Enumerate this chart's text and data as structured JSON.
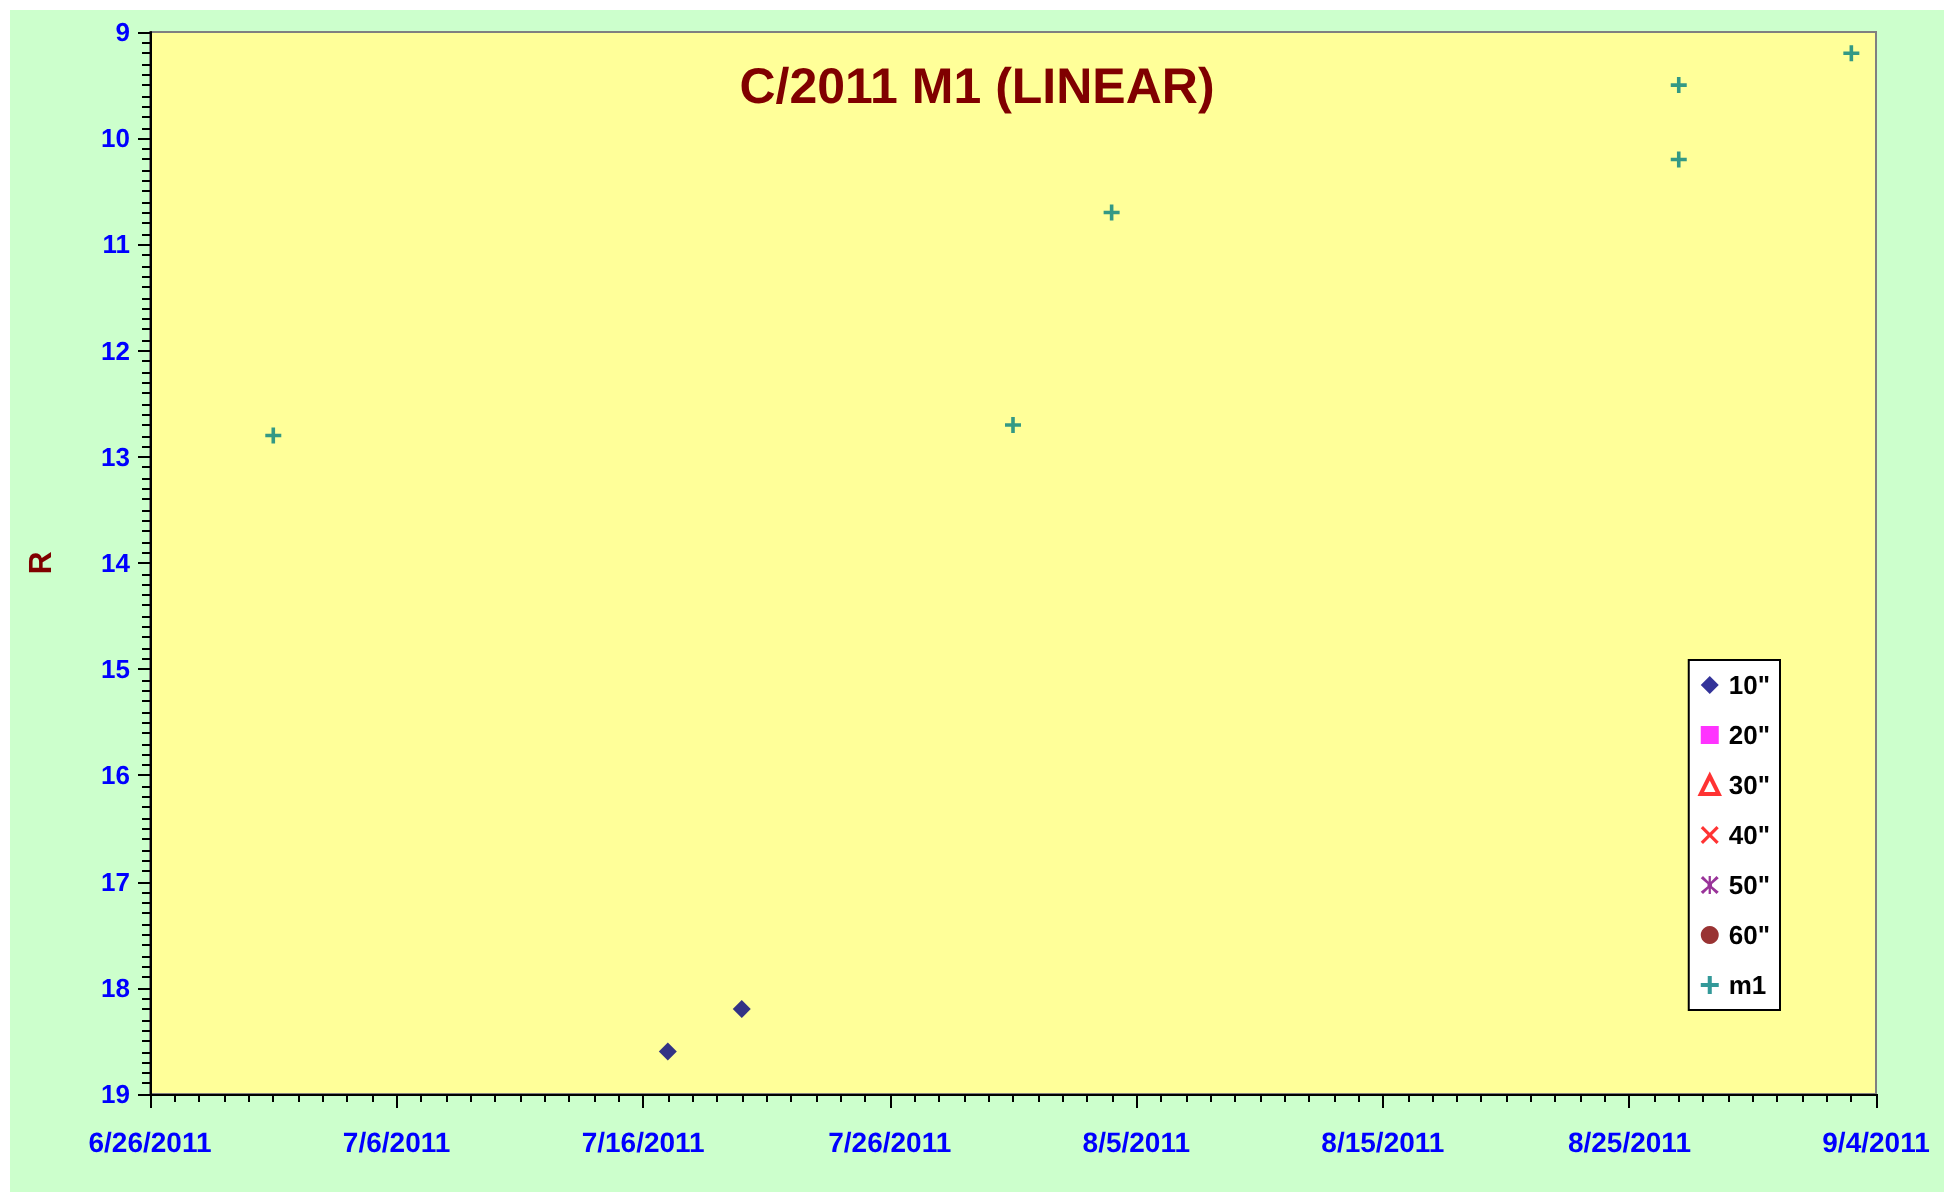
{
  "chart_data": {
    "type": "scatter",
    "title": "C/2011 M1 (LINEAR)",
    "ylabel": "R",
    "x": [
      "2011-07-01",
      "2011-07-17",
      "2011-07-20",
      "2011-07-31",
      "2011-08-04",
      "2011-08-27",
      "2011-08-27",
      "2011-09-03"
    ],
    "xlim": [
      "2011-06-26",
      "2011-09-04"
    ],
    "xticks": [
      {
        "value": "2011-06-26",
        "label": "6/26/2011"
      },
      {
        "value": "2011-06-27",
        "label": null
      },
      {
        "value": "2011-06-28",
        "label": null
      },
      {
        "value": "2011-06-29",
        "label": null
      },
      {
        "value": "2011-06-30",
        "label": null
      },
      {
        "value": "2011-07-01",
        "label": null
      },
      {
        "value": "2011-07-02",
        "label": null
      },
      {
        "value": "2011-07-03",
        "label": null
      },
      {
        "value": "2011-07-04",
        "label": null
      },
      {
        "value": "2011-07-05",
        "label": null
      },
      {
        "value": "2011-07-06",
        "label": "7/6/2011"
      },
      {
        "value": "2011-07-07",
        "label": null
      },
      {
        "value": "2011-07-08",
        "label": null
      },
      {
        "value": "2011-07-09",
        "label": null
      },
      {
        "value": "2011-07-10",
        "label": null
      },
      {
        "value": "2011-07-11",
        "label": null
      },
      {
        "value": "2011-07-12",
        "label": null
      },
      {
        "value": "2011-07-13",
        "label": null
      },
      {
        "value": "2011-07-14",
        "label": null
      },
      {
        "value": "2011-07-15",
        "label": null
      },
      {
        "value": "2011-07-16",
        "label": "7/16/2011"
      },
      {
        "value": "2011-07-17",
        "label": null
      },
      {
        "value": "2011-07-18",
        "label": null
      },
      {
        "value": "2011-07-19",
        "label": null
      },
      {
        "value": "2011-07-20",
        "label": null
      },
      {
        "value": "2011-07-21",
        "label": null
      },
      {
        "value": "2011-07-22",
        "label": null
      },
      {
        "value": "2011-07-23",
        "label": null
      },
      {
        "value": "2011-07-24",
        "label": null
      },
      {
        "value": "2011-07-25",
        "label": null
      },
      {
        "value": "2011-07-26",
        "label": "7/26/2011"
      },
      {
        "value": "2011-07-27",
        "label": null
      },
      {
        "value": "2011-07-28",
        "label": null
      },
      {
        "value": "2011-07-29",
        "label": null
      },
      {
        "value": "2011-07-30",
        "label": null
      },
      {
        "value": "2011-07-31",
        "label": null
      },
      {
        "value": "2011-08-01",
        "label": null
      },
      {
        "value": "2011-08-02",
        "label": null
      },
      {
        "value": "2011-08-03",
        "label": null
      },
      {
        "value": "2011-08-04",
        "label": null
      },
      {
        "value": "2011-08-05",
        "label": "8/5/2011"
      },
      {
        "value": "2011-08-06",
        "label": null
      },
      {
        "value": "2011-08-07",
        "label": null
      },
      {
        "value": "2011-08-08",
        "label": null
      },
      {
        "value": "2011-08-09",
        "label": null
      },
      {
        "value": "2011-08-10",
        "label": null
      },
      {
        "value": "2011-08-11",
        "label": null
      },
      {
        "value": "2011-08-12",
        "label": null
      },
      {
        "value": "2011-08-13",
        "label": null
      },
      {
        "value": "2011-08-14",
        "label": null
      },
      {
        "value": "2011-08-15",
        "label": "8/15/2011"
      },
      {
        "value": "2011-08-16",
        "label": null
      },
      {
        "value": "2011-08-17",
        "label": null
      },
      {
        "value": "2011-08-18",
        "label": null
      },
      {
        "value": "2011-08-19",
        "label": null
      },
      {
        "value": "2011-08-20",
        "label": null
      },
      {
        "value": "2011-08-21",
        "label": null
      },
      {
        "value": "2011-08-22",
        "label": null
      },
      {
        "value": "2011-08-23",
        "label": null
      },
      {
        "value": "2011-08-24",
        "label": null
      },
      {
        "value": "2011-08-25",
        "label": "8/25/2011"
      },
      {
        "value": "2011-08-26",
        "label": null
      },
      {
        "value": "2011-08-27",
        "label": null
      },
      {
        "value": "2011-08-28",
        "label": null
      },
      {
        "value": "2011-08-29",
        "label": null
      },
      {
        "value": "2011-08-30",
        "label": null
      },
      {
        "value": "2011-08-31",
        "label": null
      },
      {
        "value": "2011-09-01",
        "label": null
      },
      {
        "value": "2011-09-02",
        "label": null
      },
      {
        "value": "2011-09-03",
        "label": null
      },
      {
        "value": "2011-09-04",
        "label": "9/4/2011"
      }
    ],
    "ylim": [
      19,
      9
    ],
    "yticks": [
      9,
      {
        "value": 9.1,
        "label": null
      },
      {
        "value": 9.2,
        "label": null
      },
      {
        "value": 9.3,
        "label": null
      },
      {
        "value": 9.4,
        "label": null
      },
      {
        "value": 9.5,
        "label": null
      },
      {
        "value": 9.6,
        "label": null
      },
      {
        "value": 9.7,
        "label": null
      },
      {
        "value": 9.8,
        "label": null
      },
      {
        "value": 9.9,
        "label": null
      },
      10,
      {
        "value": 10.1,
        "label": null
      },
      {
        "value": 10.2,
        "label": null
      },
      {
        "value": 10.3,
        "label": null
      },
      {
        "value": 10.4,
        "label": null
      },
      {
        "value": 10.5,
        "label": null
      },
      {
        "value": 10.6,
        "label": null
      },
      {
        "value": 10.7,
        "label": null
      },
      {
        "value": 10.8,
        "label": null
      },
      {
        "value": 10.9,
        "label": null
      },
      11,
      {
        "value": 11.1,
        "label": null
      },
      {
        "value": 11.2,
        "label": null
      },
      {
        "value": 11.3,
        "label": null
      },
      {
        "value": 11.4,
        "label": null
      },
      {
        "value": 11.5,
        "label": null
      },
      {
        "value": 11.6,
        "label": null
      },
      {
        "value": 11.7,
        "label": null
      },
      {
        "value": 11.8,
        "label": null
      },
      {
        "value": 11.9,
        "label": null
      },
      12,
      {
        "value": 12.1,
        "label": null
      },
      {
        "value": 12.2,
        "label": null
      },
      {
        "value": 12.3,
        "label": null
      },
      {
        "value": 12.4,
        "label": null
      },
      {
        "value": 12.5,
        "label": null
      },
      {
        "value": 12.6,
        "label": null
      },
      {
        "value": 12.7,
        "label": null
      },
      {
        "value": 12.8,
        "label": null
      },
      {
        "value": 12.9,
        "label": null
      },
      13,
      {
        "value": 13.1,
        "label": null
      },
      {
        "value": 13.2,
        "label": null
      },
      {
        "value": 13.3,
        "label": null
      },
      {
        "value": 13.4,
        "label": null
      },
      {
        "value": 13.5,
        "label": null
      },
      {
        "value": 13.6,
        "label": null
      },
      {
        "value": 13.7,
        "label": null
      },
      {
        "value": 13.8,
        "label": null
      },
      {
        "value": 13.9,
        "label": null
      },
      14,
      {
        "value": 14.1,
        "label": null
      },
      {
        "value": 14.2,
        "label": null
      },
      {
        "value": 14.3,
        "label": null
      },
      {
        "value": 14.4,
        "label": null
      },
      {
        "value": 14.5,
        "label": null
      },
      {
        "value": 14.6,
        "label": null
      },
      {
        "value": 14.7,
        "label": null
      },
      {
        "value": 14.8,
        "label": null
      },
      {
        "value": 14.9,
        "label": null
      },
      15,
      {
        "value": 15.1,
        "label": null
      },
      {
        "value": 15.2,
        "label": null
      },
      {
        "value": 15.3,
        "label": null
      },
      {
        "value": 15.4,
        "label": null
      },
      {
        "value": 15.5,
        "label": null
      },
      {
        "value": 15.6,
        "label": null
      },
      {
        "value": 15.7,
        "label": null
      },
      {
        "value": 15.8,
        "label": null
      },
      {
        "value": 15.9,
        "label": null
      },
      16,
      {
        "value": 16.1,
        "label": null
      },
      {
        "value": 16.2,
        "label": null
      },
      {
        "value": 16.3,
        "label": null
      },
      {
        "value": 16.4,
        "label": null
      },
      {
        "value": 16.5,
        "label": null
      },
      {
        "value": 16.6,
        "label": null
      },
      {
        "value": 16.7,
        "label": null
      },
      {
        "value": 16.8,
        "label": null
      },
      {
        "value": 16.9,
        "label": null
      },
      17,
      {
        "value": 17.1,
        "label": null
      },
      {
        "value": 17.2,
        "label": null
      },
      {
        "value": 17.3,
        "label": null
      },
      {
        "value": 17.4,
        "label": null
      },
      {
        "value": 17.5,
        "label": null
      },
      {
        "value": 17.6,
        "label": null
      },
      {
        "value": 17.7,
        "label": null
      },
      {
        "value": 17.8,
        "label": null
      },
      {
        "value": 17.9,
        "label": null
      },
      18,
      {
        "value": 18.1,
        "label": null
      },
      {
        "value": 18.2,
        "label": null
      },
      {
        "value": 18.3,
        "label": null
      },
      {
        "value": 18.4,
        "label": null
      },
      {
        "value": 18.5,
        "label": null
      },
      {
        "value": 18.6,
        "label": null
      },
      {
        "value": 18.7,
        "label": null
      },
      {
        "value": 18.8,
        "label": null
      },
      {
        "value": 18.9,
        "label": null
      },
      19
    ],
    "series": [
      {
        "name": "10\"",
        "color": "#000080",
        "marker": "diamond",
        "values": [
          null,
          18.6,
          18.2,
          null,
          null,
          null,
          null,
          null
        ]
      },
      {
        "name": "20\"",
        "color": "#ff00ff",
        "marker": "square",
        "values": [
          null,
          null,
          null,
          null,
          null,
          null,
          null,
          null
        ]
      },
      {
        "name": "30\"",
        "color": "#ff0000",
        "marker": "triangle",
        "values": [
          null,
          null,
          null,
          null,
          null,
          null,
          null,
          null
        ]
      },
      {
        "name": "40\"",
        "color": "#ff0000",
        "marker": "cross",
        "values": [
          null,
          null,
          null,
          null,
          null,
          null,
          null,
          null
        ]
      },
      {
        "name": "50\"",
        "color": "#800080",
        "marker": "star",
        "values": [
          null,
          null,
          null,
          null,
          null,
          null,
          null,
          null
        ]
      },
      {
        "name": "60\"",
        "color": "#800000",
        "marker": "circle",
        "values": [
          null,
          null,
          null,
          null,
          null,
          null,
          null,
          null
        ]
      },
      {
        "name": "m1",
        "color": "#008080",
        "marker": "plus",
        "values": [
          12.8,
          null,
          null,
          12.7,
          10.7,
          9.5,
          10.2,
          9.2
        ]
      }
    ],
    "legend": "bottom right",
    "grid": false
  }
}
